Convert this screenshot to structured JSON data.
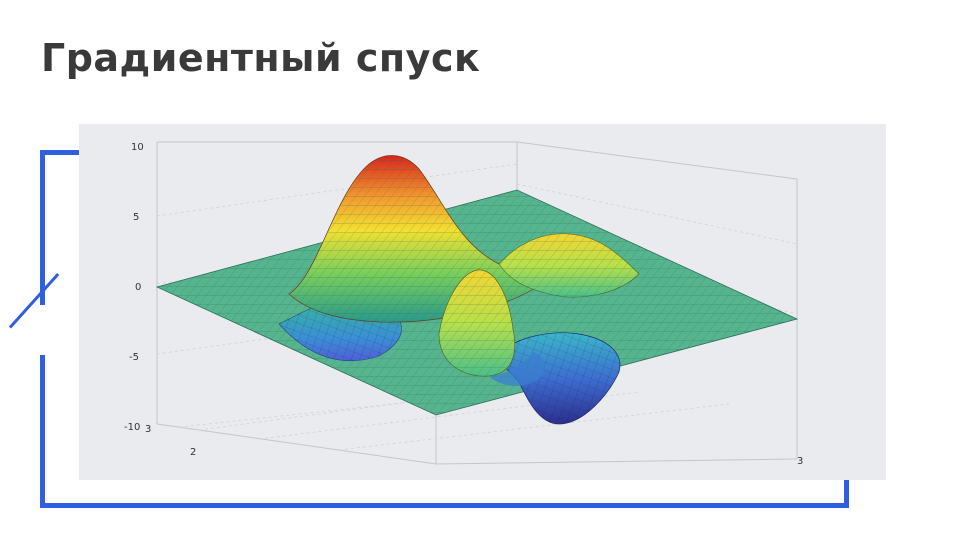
{
  "slide": {
    "title": "Градиентный спуск"
  },
  "colors": {
    "frame": "#2f5fe0",
    "title": "#3a3a3a",
    "panel": "#e9ebee"
  },
  "figure": {
    "type": "3d-surface",
    "colormap": "jet",
    "z_ticks": [
      "10",
      "5",
      "0",
      "-5",
      "-10"
    ],
    "x_tick_labels": [
      "3",
      "2"
    ],
    "y_tick_labels": [
      "3"
    ]
  }
}
